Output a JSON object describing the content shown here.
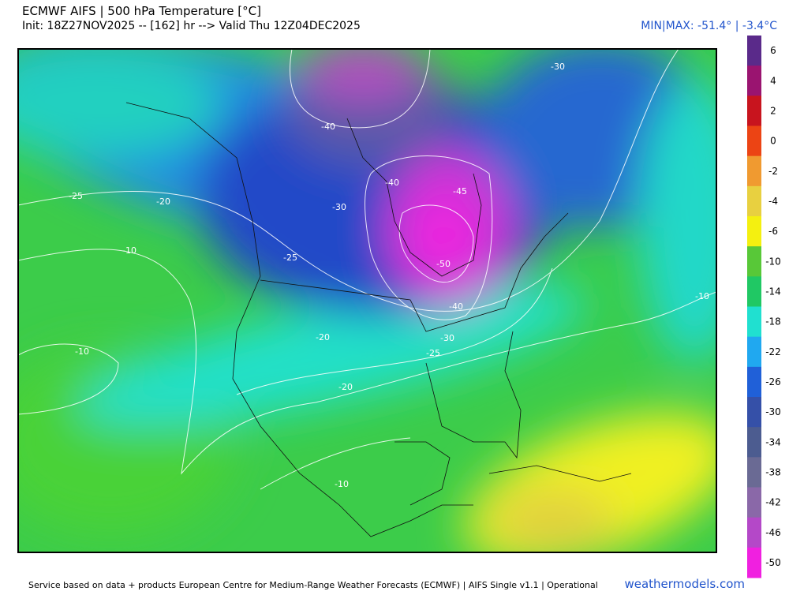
{
  "header": {
    "title": "ECMWF AIFS | 500 hPa Temperature [°C]",
    "subtitle": "Init: 18Z27NOV2025 -- [162] hr --> Valid Thu 12Z04DEC2025",
    "minmax": "MIN|MAX: -51.4° | -3.4°C"
  },
  "colorbar": {
    "labels": [
      "6",
      "4",
      "2",
      "0",
      "-2",
      "-4",
      "-6",
      "-10",
      "-14",
      "-18",
      "-22",
      "-26",
      "-30",
      "-34",
      "-38",
      "-42",
      "-46",
      "-50"
    ],
    "colors": [
      "#5a2a8a",
      "#9a1470",
      "#c8141e",
      "#ec4414",
      "#f09a30",
      "#e8d040",
      "#f4f010",
      "#58c838",
      "#20c864",
      "#20e0d0",
      "#20a8f0",
      "#2060d8",
      "#3550a8",
      "#4c5c90",
      "#6a6a94",
      "#8a68a8",
      "#b448c8",
      "#f020e0"
    ]
  },
  "contour_labels": [
    "-40",
    "-30",
    "-40",
    "-45",
    "-25",
    "-20",
    "-30",
    "-10",
    "-25",
    "-50",
    "-40",
    "-10",
    "-20",
    "-30",
    "-25",
    "-10",
    "-20",
    "-10"
  ],
  "footer": {
    "credit": "Service based on data + products European Centre for Medium-Range Weather Forecasts (ECMWF) | AIFS Single v1.1 | Operational",
    "brand": "weathermodels.com"
  }
}
